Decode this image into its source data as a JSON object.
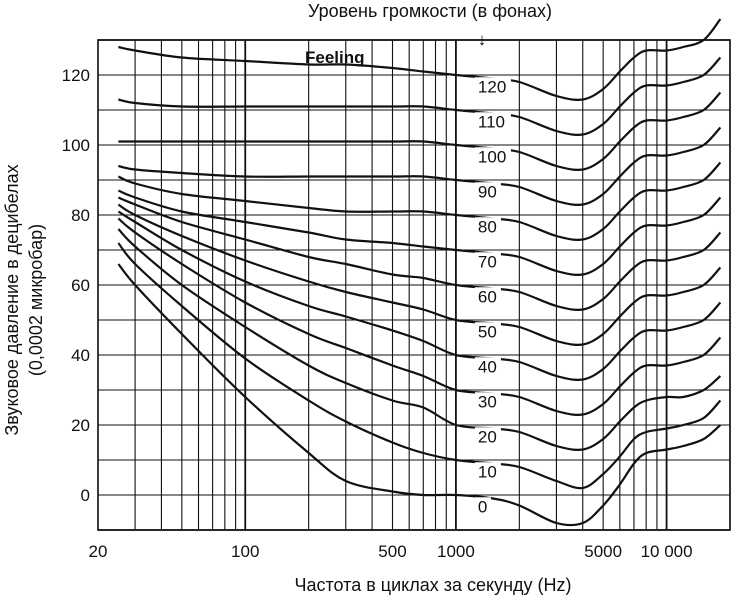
{
  "chart_data": {
    "type": "line",
    "title": "Уровень громкости (в фонах)",
    "xlabel": "Частота в циклах за секунду (Hz)",
    "ylabel": "Звуковое давление в децибелах",
    "ylabel_sub": "(0,0002 микробар)",
    "x_scale": "log",
    "xlim": [
      20,
      20000
    ],
    "ylim": [
      -10,
      130
    ],
    "grid": true,
    "x_ticks": [
      {
        "value": 20,
        "label": "20"
      },
      {
        "value": 100,
        "label": "100"
      },
      {
        "value": 500,
        "label": "500"
      },
      {
        "value": 1000,
        "label": "1000"
      },
      {
        "value": 5000,
        "label": "5000"
      },
      {
        "value": 10000,
        "label": "10 000"
      }
    ],
    "y_ticks": [
      0,
      20,
      40,
      60,
      80,
      100,
      120
    ],
    "feeling_label": "Feeling",
    "arrow_symbol": "↓",
    "x": [
      25,
      30,
      50,
      100,
      200,
      300,
      500,
      700,
      1000,
      1500,
      2000,
      3000,
      4000,
      5000,
      6000,
      7000,
      8000,
      10000,
      12000,
      15000,
      18000
    ],
    "series": [
      {
        "name": "0",
        "values": [
          66,
          60,
          46,
          28,
          12,
          4,
          1,
          0,
          0,
          -1,
          -3,
          -8,
          -8,
          -3,
          3,
          9,
          12,
          13,
          14,
          16,
          20
        ]
      },
      {
        "name": "10",
        "values": [
          72,
          66,
          54,
          39,
          27,
          21,
          15,
          12,
          10,
          9,
          8,
          4,
          2,
          6,
          11,
          16,
          18,
          19,
          20,
          22,
          27
        ]
      },
      {
        "name": "20",
        "values": [
          76,
          71,
          60,
          48,
          37,
          32,
          27,
          25,
          20,
          19,
          18,
          14,
          13,
          16,
          21,
          25,
          27,
          28,
          28,
          30,
          34
        ]
      },
      {
        "name": "30",
        "values": [
          79,
          75,
          66,
          55,
          46,
          42,
          37,
          34,
          30,
          29,
          28,
          24,
          23,
          26,
          31,
          35,
          37,
          37,
          38,
          40,
          45
        ]
      },
      {
        "name": "40",
        "values": [
          81,
          78,
          70,
          61,
          54,
          51,
          47,
          44,
          40,
          39,
          38,
          34,
          33,
          36,
          41,
          45,
          47,
          47,
          48,
          50,
          55
        ]
      },
      {
        "name": "50",
        "values": [
          83,
          80,
          74,
          67,
          61,
          58,
          55,
          53,
          50,
          49,
          48,
          44,
          43,
          46,
          51,
          55,
          57,
          57,
          58,
          60,
          65
        ]
      },
      {
        "name": "60",
        "values": [
          85,
          83,
          78,
          73,
          68,
          66,
          63,
          62,
          60,
          59,
          58,
          54,
          53,
          56,
          61,
          65,
          67,
          67,
          68,
          70,
          75
        ]
      },
      {
        "name": "70",
        "values": [
          87,
          85,
          81,
          78,
          75,
          73,
          72,
          71,
          70,
          69,
          68,
          64,
          63,
          66,
          71,
          75,
          77,
          77,
          78,
          80,
          85
        ]
      },
      {
        "name": "80",
        "values": [
          91,
          89,
          86,
          84,
          82,
          81,
          81,
          81,
          80,
          79,
          78,
          74,
          73,
          76,
          81,
          85,
          87,
          87,
          88,
          90,
          95
        ]
      },
      {
        "name": "90",
        "values": [
          94,
          93,
          92,
          91,
          91,
          91,
          91,
          91,
          90,
          89,
          88,
          84,
          83,
          86,
          91,
          95,
          97,
          97,
          98,
          100,
          105
        ]
      },
      {
        "name": "100",
        "values": [
          101,
          101,
          101,
          101,
          101,
          101,
          101,
          101,
          100,
          99,
          98,
          94,
          93,
          96,
          101,
          105,
          107,
          107,
          108,
          110,
          115
        ]
      },
      {
        "name": "110",
        "values": [
          113,
          112,
          111,
          111,
          111,
          111,
          111,
          111,
          110,
          109,
          108,
          104,
          103,
          106,
          111,
          115,
          117,
          117,
          118,
          120,
          125
        ]
      },
      {
        "name": "120",
        "values": [
          128,
          127,
          125,
          124,
          123,
          123,
          122,
          121,
          120,
          119,
          118,
          114,
          113,
          116,
          121,
          125,
          127,
          127,
          128,
          130,
          136
        ]
      }
    ],
    "line_color": "#111111",
    "grid_color": "#111111"
  }
}
